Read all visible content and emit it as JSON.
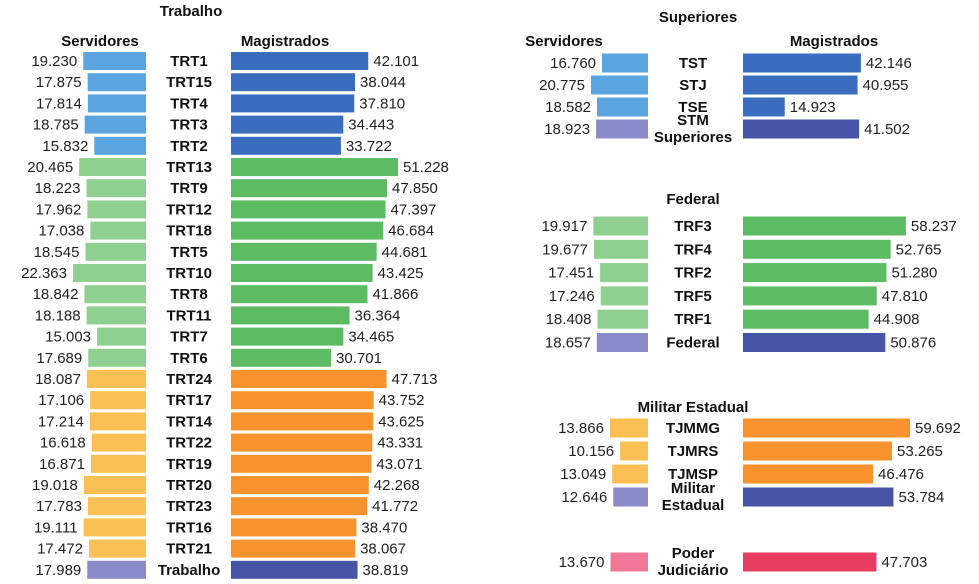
{
  "colors": {
    "serv_blue": "#5aa4df",
    "mag_blue": "#3b6dbf",
    "serv_green": "#8fcf8f",
    "mag_green": "#5dbb63",
    "serv_orange": "#fbbf53",
    "mag_orange": "#f7922c",
    "serv_total": "#8a8bc9",
    "mag_total": "#4655a5",
    "serv_pink": "#f07896",
    "mag_pink": "#e93c62"
  },
  "chart_data": [
    {
      "type": "bar",
      "title": "Trabalho",
      "series_headers": [
        "Servidores",
        "Magistrados"
      ],
      "rows": [
        {
          "label": "TRT1",
          "servidores": "19.230",
          "magistrados": "42.101",
          "group": "blue"
        },
        {
          "label": "TRT15",
          "servidores": "17.875",
          "magistrados": "38.044",
          "group": "blue"
        },
        {
          "label": "TRT4",
          "servidores": "17.814",
          "magistrados": "37.810",
          "group": "blue"
        },
        {
          "label": "TRT3",
          "servidores": "18.785",
          "magistrados": "34.443",
          "group": "blue"
        },
        {
          "label": "TRT2",
          "servidores": "15.832",
          "magistrados": "33.722",
          "group": "blue"
        },
        {
          "label": "TRT13",
          "servidores": "20.465",
          "magistrados": "51.228",
          "group": "green"
        },
        {
          "label": "TRT9",
          "servidores": "18.223",
          "magistrados": "47.850",
          "group": "green"
        },
        {
          "label": "TRT12",
          "servidores": "17.962",
          "magistrados": "47.397",
          "group": "green"
        },
        {
          "label": "TRT18",
          "servidores": "17.038",
          "magistrados": "46.684",
          "group": "green"
        },
        {
          "label": "TRT5",
          "servidores": "18.545",
          "magistrados": "44.681",
          "group": "green"
        },
        {
          "label": "TRT10",
          "servidores": "22.363",
          "magistrados": "43.425",
          "group": "green"
        },
        {
          "label": "TRT8",
          "servidores": "18.842",
          "magistrados": "41.866",
          "group": "green"
        },
        {
          "label": "TRT11",
          "servidores": "18.188",
          "magistrados": "36.364",
          "group": "green"
        },
        {
          "label": "TRT7",
          "servidores": "15.003",
          "magistrados": "34.465",
          "group": "green"
        },
        {
          "label": "TRT6",
          "servidores": "17.689",
          "magistrados": "30.701",
          "group": "green"
        },
        {
          "label": "TRT24",
          "servidores": "18.087",
          "magistrados": "47.713",
          "group": "orange"
        },
        {
          "label": "TRT17",
          "servidores": "17.106",
          "magistrados": "43.752",
          "group": "orange"
        },
        {
          "label": "TRT14",
          "servidores": "17.214",
          "magistrados": "43.625",
          "group": "orange"
        },
        {
          "label": "TRT22",
          "servidores": "16.618",
          "magistrados": "43.331",
          "group": "orange"
        },
        {
          "label": "TRT19",
          "servidores": "16.871",
          "magistrados": "43.071",
          "group": "orange"
        },
        {
          "label": "TRT20",
          "servidores": "19.018",
          "magistrados": "42.268",
          "group": "orange"
        },
        {
          "label": "TRT23",
          "servidores": "17.783",
          "magistrados": "41.772",
          "group": "orange"
        },
        {
          "label": "TRT16",
          "servidores": "19.111",
          "magistrados": "38.470",
          "group": "orange"
        },
        {
          "label": "TRT21",
          "servidores": "17.472",
          "magistrados": "38.067",
          "group": "orange"
        },
        {
          "label": "Trabalho",
          "servidores": "17.989",
          "magistrados": "38.819",
          "group": "total"
        }
      ]
    },
    {
      "type": "bar",
      "title": "Superiores",
      "series_headers": [
        "Servidores",
        "Magistrados"
      ],
      "rows": [
        {
          "label": "TST",
          "servidores": "16.760",
          "magistrados": "42.146",
          "group": "blue"
        },
        {
          "label": "STJ",
          "servidores": "20.775",
          "magistrados": "40.955",
          "group": "blue"
        },
        {
          "label": "TSE",
          "servidores": "18.582",
          "magistrados": "14.923",
          "group": "blue"
        },
        {
          "label": "STM",
          "label2": "Superiores",
          "servidores": "18.923",
          "magistrados": "41.502",
          "group": "total"
        }
      ]
    },
    {
      "type": "bar",
      "title": "Federal",
      "rows": [
        {
          "label": "TRF3",
          "servidores": "19.917",
          "magistrados": "58.237",
          "group": "green"
        },
        {
          "label": "TRF4",
          "servidores": "19.677",
          "magistrados": "52.765",
          "group": "green"
        },
        {
          "label": "TRF2",
          "servidores": "17.451",
          "magistrados": "51.280",
          "group": "green"
        },
        {
          "label": "TRF5",
          "servidores": "17.246",
          "magistrados": "47.810",
          "group": "green"
        },
        {
          "label": "TRF1",
          "servidores": "18.408",
          "magistrados": "44.908",
          "group": "green"
        },
        {
          "label": "Federal",
          "servidores": "18.657",
          "magistrados": "50.876",
          "group": "total"
        }
      ]
    },
    {
      "type": "bar",
      "title": "Militar Estadual",
      "rows": [
        {
          "label": "TJMMG",
          "servidores": "13.866",
          "magistrados": "59.692",
          "group": "orange"
        },
        {
          "label": "TJMRS",
          "servidores": "10.156",
          "magistrados": "53.265",
          "group": "orange"
        },
        {
          "label": "TJMSP",
          "servidores": "13.049",
          "magistrados": "46.476",
          "group": "orange"
        },
        {
          "label": "Militar",
          "label2": "Estadual",
          "servidores": "12.646",
          "magistrados": "53.784",
          "group": "total"
        }
      ]
    },
    {
      "type": "bar",
      "rows": [
        {
          "label": "Poder",
          "label2": "Judiciário",
          "servidores": "13.670",
          "magistrados": "47.703",
          "group": "pink"
        }
      ]
    }
  ]
}
